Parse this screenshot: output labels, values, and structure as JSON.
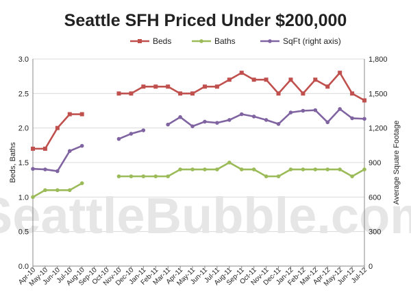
{
  "chart_data": {
    "type": "line",
    "title": "Seattle SFH Priced Under $200,000",
    "watermark": "SeattleBubble.com",
    "ylabel": "Beds, Baths",
    "y2label": "Average Square Footage",
    "ylim": [
      0,
      3.0
    ],
    "y2lim": [
      0,
      1800
    ],
    "yticks": [
      "0.0",
      "0.5",
      "1.0",
      "1.5",
      "2.0",
      "2.5",
      "3.0"
    ],
    "y2ticks": [
      "0",
      "300",
      "600",
      "900",
      "1,200",
      "1,500",
      "1,800"
    ],
    "grid": true,
    "legend": "top",
    "categories": [
      "Apr-10",
      "May-10",
      "Jun-10",
      "Jul-10",
      "Aug-10",
      "Sep-10",
      "Oct-10",
      "Nov-10",
      "Dec-10",
      "Jan-11",
      "Feb-11",
      "Mar-11",
      "Apr-11",
      "May-11",
      "Jun-11",
      "Jul-11",
      "Aug-11",
      "Sep-11",
      "Oct-11",
      "Nov-11",
      "Dec-11",
      "Jan-12",
      "Feb-12",
      "Mar-12",
      "Apr-12",
      "May-12",
      "Jun-12",
      "Jul-12"
    ],
    "series": [
      {
        "name": "Beds",
        "axis": "left",
        "color": "#c0504d",
        "marker": "square",
        "values": [
          1.7,
          1.7,
          2.0,
          2.2,
          2.2,
          null,
          null,
          2.5,
          2.5,
          2.6,
          2.6,
          2.6,
          2.5,
          2.5,
          2.6,
          2.6,
          2.7,
          2.8,
          2.7,
          2.7,
          2.5,
          2.7,
          2.5,
          2.7,
          2.6,
          2.8,
          2.5,
          2.4
        ]
      },
      {
        "name": "Baths",
        "axis": "left",
        "color": "#9bbb59",
        "marker": "circle",
        "values": [
          1.0,
          1.1,
          1.1,
          1.1,
          1.2,
          null,
          null,
          1.3,
          1.3,
          1.3,
          1.3,
          1.3,
          1.4,
          1.4,
          1.4,
          1.4,
          1.5,
          1.4,
          1.4,
          1.3,
          1.3,
          1.4,
          1.4,
          1.4,
          1.4,
          1.4,
          1.3,
          1.4
        ]
      },
      {
        "name": "SqFt (right axis)",
        "axis": "right",
        "color": "#8064a2",
        "marker": "circle",
        "values": [
          845,
          840,
          825,
          1000,
          1045,
          null,
          null,
          1105,
          1150,
          1180,
          null,
          1230,
          1295,
          1215,
          1255,
          1245,
          1270,
          1320,
          1300,
          1270,
          1235,
          1335,
          1350,
          1355,
          1250,
          1365,
          1285,
          1280
        ]
      }
    ]
  }
}
